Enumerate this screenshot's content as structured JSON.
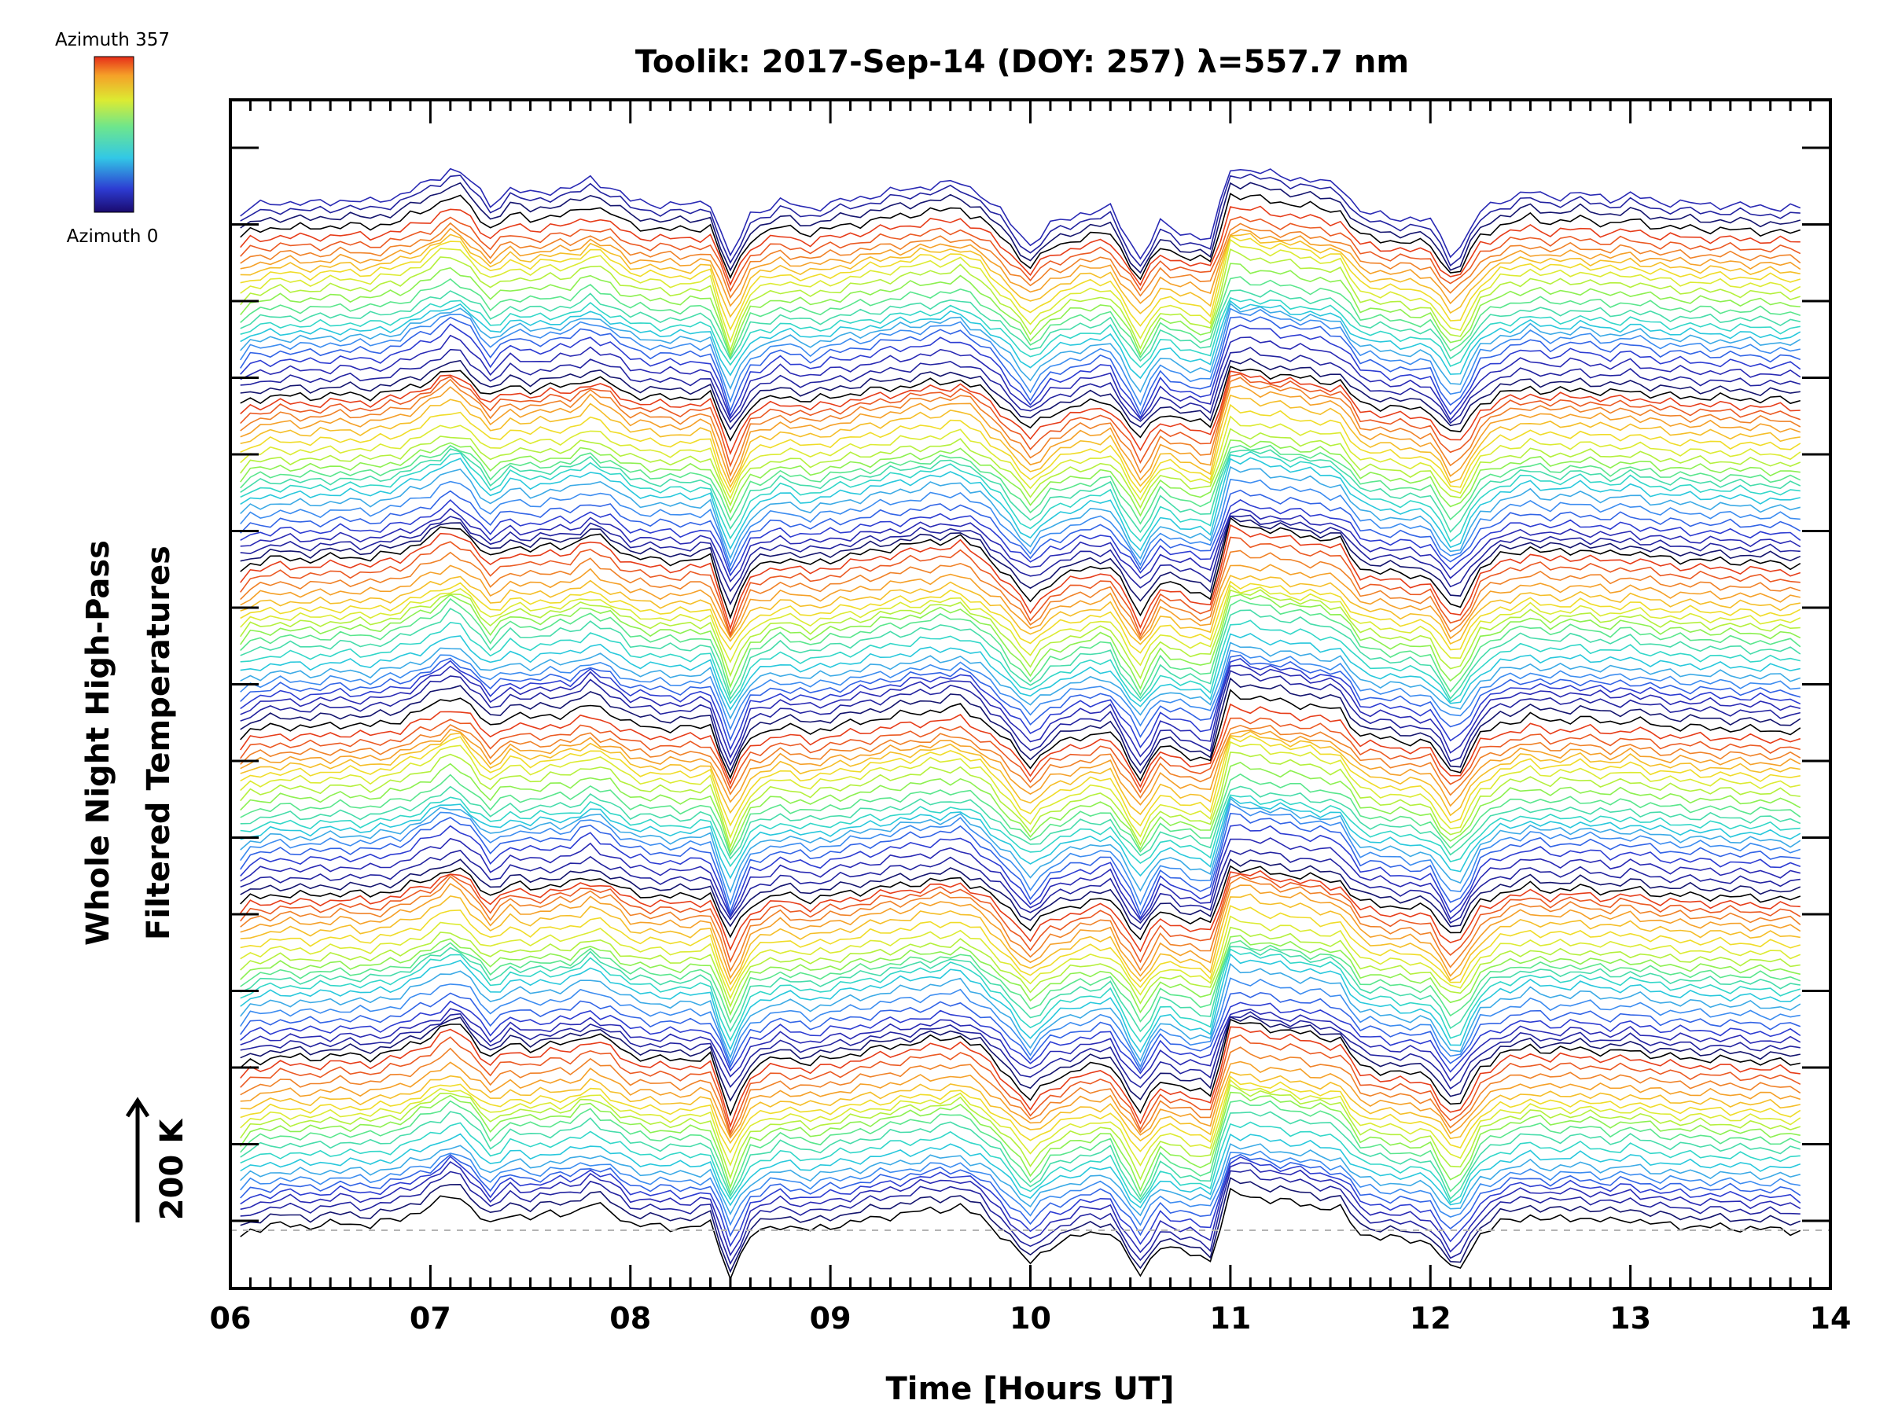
{
  "chart_data": {
    "type": "line",
    "title": "Toolik: 2017-Sep-14 (DOY: 257) λ=557.7 nm",
    "xlabel": "Time [Hours UT]",
    "ylabel_line1": "Whole Night High-Pass",
    "ylabel_line2": "Filtered Temperatures",
    "scale_label": "200 K",
    "colorbar": {
      "max_label": "Azimuth 357",
      "min_label": "Azimuth 0",
      "colormap": "rainbow (blue → red)"
    },
    "x_ticks": [
      "06",
      "07",
      "08",
      "09",
      "10",
      "11",
      "12",
      "13",
      "14"
    ],
    "xlim": [
      6,
      14
    ],
    "x_start": 6.05,
    "x_end": 13.85,
    "sample_step_hours": 0.05,
    "n_series": 130,
    "series_color_cycle": [
      "#000000",
      "#14146e",
      "#2323a0",
      "#2a2ab4",
      "#2d3cd2",
      "#3264e6",
      "#3c8cf0",
      "#3caae6",
      "#28c8dc",
      "#32d7c8",
      "#46dcaa",
      "#5ae68c",
      "#8cf050",
      "#b4f03c",
      "#dceb32",
      "#f0dc28",
      "#f5be28",
      "#f5a028",
      "#f08228",
      "#eb5a23",
      "#e63c19"
    ],
    "series_description": "Stacked high-pass filtered temperature traces, one per azimuth, each offset vertically; all traces share the same time pattern",
    "profile_anchors": {
      "times": [
        6.0,
        6.1,
        6.25,
        6.4,
        6.55,
        6.7,
        6.85,
        7.0,
        7.12,
        7.2,
        7.3,
        7.4,
        7.5,
        7.6,
        7.7,
        7.8,
        7.9,
        8.0,
        8.1,
        8.25,
        8.4,
        8.5,
        8.6,
        8.75,
        8.9,
        9.0,
        9.15,
        9.3,
        9.45,
        9.65,
        9.75,
        9.85,
        10.0,
        10.1,
        10.25,
        10.4,
        10.55,
        10.65,
        10.75,
        10.9,
        11.0,
        11.1,
        11.25,
        11.4,
        11.55,
        11.65,
        11.8,
        12.0,
        12.12,
        12.25,
        12.35,
        12.5,
        12.6,
        12.75,
        12.9,
        13.0,
        13.15,
        13.3,
        13.5,
        13.7,
        13.85
      ],
      "values": [
        -6,
        14,
        20,
        18,
        22,
        20,
        28,
        45,
        62,
        45,
        18,
        35,
        30,
        34,
        36,
        48,
        38,
        22,
        18,
        16,
        20,
        -48,
        5,
        20,
        12,
        18,
        25,
        32,
        38,
        44,
        30,
        8,
        -32,
        -8,
        6,
        12,
        -48,
        -6,
        -16,
        -26,
        62,
        58,
        52,
        46,
        40,
        8,
        2,
        -3,
        -48,
        8,
        22,
        32,
        26,
        30,
        24,
        28,
        20,
        18,
        16,
        14,
        12
      ]
    },
    "baseline_style": "dashed light gray line at bottom trace level"
  }
}
